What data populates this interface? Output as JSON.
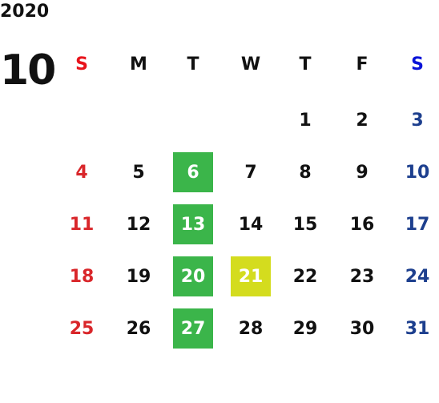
{
  "year": "2020",
  "month": "10",
  "weekdays": [
    "S",
    "M",
    "T",
    "W",
    "T",
    "F",
    "S"
  ],
  "weeks": [
    [
      null,
      null,
      null,
      null,
      {
        "day": 1
      },
      {
        "day": 2
      },
      {
        "day": 3
      }
    ],
    [
      {
        "day": 4
      },
      {
        "day": 5
      },
      {
        "day": 6,
        "highlight": "#3bb54a"
      },
      {
        "day": 7
      },
      {
        "day": 8
      },
      {
        "day": 9
      },
      {
        "day": 10
      }
    ],
    [
      {
        "day": 11
      },
      {
        "day": 12
      },
      {
        "day": 13,
        "highlight": "#3bb54a"
      },
      {
        "day": 14
      },
      {
        "day": 15
      },
      {
        "day": 16
      },
      {
        "day": 17
      }
    ],
    [
      {
        "day": 18
      },
      {
        "day": 19
      },
      {
        "day": 20,
        "highlight": "#3bb54a"
      },
      {
        "day": 21,
        "highlight": "#d4dc1e"
      },
      {
        "day": 22
      },
      {
        "day": 23
      },
      {
        "day": 24
      }
    ],
    [
      {
        "day": 25
      },
      {
        "day": 26
      },
      {
        "day": 27,
        "highlight": "#3bb54a"
      },
      {
        "day": 28
      },
      {
        "day": 29
      },
      {
        "day": 30
      },
      {
        "day": 31
      }
    ]
  ]
}
